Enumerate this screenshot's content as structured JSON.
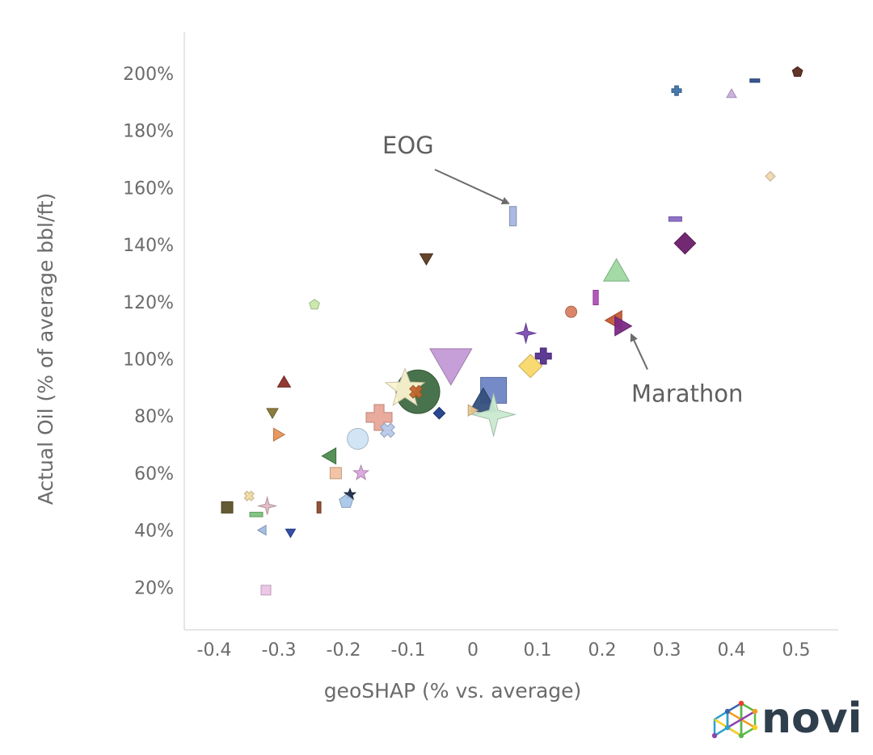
{
  "chart_data": {
    "type": "scatter",
    "title": "",
    "xlabel": "geoSHAP (% vs. average)",
    "ylabel": "Actual Oil (% of average bbl/ft)",
    "xlim": [
      -0.45,
      0.57
    ],
    "ylim": [
      0.0,
      2.15
    ],
    "x_ticks": [
      -0.4,
      -0.3,
      -0.2,
      -0.1,
      0,
      0.1,
      0.2,
      0.3,
      0.4,
      0.5
    ],
    "x_tick_labels": [
      "-0.4",
      "-0.3",
      "-0.2",
      "-0.1",
      "0",
      "0.1",
      "0.2",
      "0.3",
      "0.4",
      "0.5"
    ],
    "y_ticks": [
      0.2,
      0.4,
      0.6,
      0.8,
      1.0,
      1.2,
      1.4,
      1.6,
      1.8,
      2.0
    ],
    "y_tick_labels": [
      "20%",
      "40%",
      "60%",
      "80%",
      "100%",
      "120%",
      "140%",
      "160%",
      "180%",
      "200%"
    ],
    "grid": false,
    "legend": "none",
    "points": [
      {
        "x": 0.502,
        "y": 2.005,
        "shape": "pentagon",
        "color": "#5a2a1e",
        "size": 6
      },
      {
        "x": 0.315,
        "y": 1.94,
        "shape": "plus",
        "color": "#3f73a8",
        "size": 6
      },
      {
        "x": 0.4,
        "y": 1.93,
        "shape": "triangle-up",
        "color": "#c9b0dc",
        "size": 6
      },
      {
        "x": 0.436,
        "y": 1.975,
        "shape": "dash",
        "color": "#2e4e8a",
        "size": 6
      },
      {
        "x": 0.46,
        "y": 1.64,
        "shape": "diamond",
        "color": "#f0d8b0",
        "size": 5
      },
      {
        "x": 0.062,
        "y": 1.5,
        "shape": "bar-v",
        "color": "#a5b4e0",
        "size": 12
      },
      {
        "x": 0.313,
        "y": 1.49,
        "shape": "dash",
        "color": "#8a6ac8",
        "size": 8
      },
      {
        "x": 0.328,
        "y": 1.405,
        "shape": "diamond",
        "color": "#6a1d6a",
        "size": 11
      },
      {
        "x": -0.072,
        "y": 1.35,
        "shape": "triangle-down",
        "color": "#5c3a22",
        "size": 8
      },
      {
        "x": 0.222,
        "y": 1.31,
        "shape": "triangle-up",
        "color": "#9ed8a0",
        "size": 16
      },
      {
        "x": -0.245,
        "y": 1.19,
        "shape": "pentagon",
        "color": "#c8e8a8",
        "size": 6
      },
      {
        "x": 0.19,
        "y": 1.215,
        "shape": "bar-v",
        "color": "#b050b8",
        "size": 9
      },
      {
        "x": 0.152,
        "y": 1.165,
        "shape": "circle",
        "color": "#d98063",
        "size": 7
      },
      {
        "x": 0.218,
        "y": 1.135,
        "shape": "triangle-left",
        "color": "#c45a35",
        "size": 12
      },
      {
        "x": 0.232,
        "y": 1.115,
        "shape": "triangle-right",
        "color": "#7b2a86",
        "size": 12
      },
      {
        "x": 0.082,
        "y": 1.09,
        "shape": "star4",
        "color": "#7a4cb4",
        "size": 10
      },
      {
        "x": 0.109,
        "y": 1.01,
        "shape": "plus",
        "color": "#54308e",
        "size": 10
      },
      {
        "x": -0.034,
        "y": 0.975,
        "shape": "triangle-down",
        "color": "#c49ad6",
        "size": 26
      },
      {
        "x": 0.089,
        "y": 0.975,
        "shape": "diamond",
        "color": "#f9d86a",
        "size": 12
      },
      {
        "x": -0.292,
        "y": 0.92,
        "shape": "triangle-up",
        "color": "#8b2e28",
        "size": 8
      },
      {
        "x": -0.085,
        "y": 0.885,
        "shape": "circle",
        "color": "#3f6b42",
        "size": 27
      },
      {
        "x": -0.105,
        "y": 0.895,
        "shape": "star5",
        "color": "#fbf3cf",
        "size": 21
      },
      {
        "x": -0.088,
        "y": 0.885,
        "shape": "cross",
        "color": "#c4662e",
        "size": 8
      },
      {
        "x": 0.032,
        "y": 0.89,
        "shape": "square",
        "color": "#6d85c4",
        "size": 16
      },
      {
        "x": 0.016,
        "y": 0.855,
        "shape": "triangle-up",
        "color": "#35507e",
        "size": 17
      },
      {
        "x": 0.032,
        "y": 0.805,
        "shape": "star4",
        "color": "#c9ead0",
        "size": 22
      },
      {
        "x": 0.0,
        "y": 0.82,
        "shape": "triangle-right",
        "color": "#e9c890",
        "size": 7
      },
      {
        "x": -0.052,
        "y": 0.81,
        "shape": "diamond",
        "color": "#1f3d8a",
        "size": 6
      },
      {
        "x": -0.31,
        "y": 0.81,
        "shape": "triangle-down",
        "color": "#857535",
        "size": 7
      },
      {
        "x": -0.145,
        "y": 0.795,
        "shape": "plus",
        "color": "#e8a698",
        "size": 16
      },
      {
        "x": -0.132,
        "y": 0.75,
        "shape": "cross",
        "color": "#b7c9ea",
        "size": 9
      },
      {
        "x": -0.3,
        "y": 0.735,
        "shape": "triangle-right",
        "color": "#e6945a",
        "size": 8
      },
      {
        "x": -0.178,
        "y": 0.72,
        "shape": "circle",
        "color": "#cfe4f4",
        "size": 13
      },
      {
        "x": -0.222,
        "y": 0.66,
        "shape": "triangle-left",
        "color": "#4f8b4f",
        "size": 10
      },
      {
        "x": -0.212,
        "y": 0.6,
        "shape": "square",
        "color": "#f2c0a0",
        "size": 7
      },
      {
        "x": -0.173,
        "y": 0.6,
        "shape": "star5",
        "color": "#d9a7dc",
        "size": 8
      },
      {
        "x": -0.19,
        "y": 0.525,
        "shape": "star5",
        "color": "#1e2b4a",
        "size": 6
      },
      {
        "x": -0.196,
        "y": 0.5,
        "shape": "pentagon",
        "color": "#a9c7ea",
        "size": 8
      },
      {
        "x": -0.346,
        "y": 0.52,
        "shape": "cross",
        "color": "#f1dba4",
        "size": 6
      },
      {
        "x": -0.318,
        "y": 0.485,
        "shape": "star4",
        "color": "#e0b9c3",
        "size": 9
      },
      {
        "x": -0.38,
        "y": 0.48,
        "shape": "square",
        "color": "#5c5229",
        "size": 7
      },
      {
        "x": -0.238,
        "y": 0.48,
        "shape": "bar-v",
        "color": "#8e4a2b",
        "size": 7
      },
      {
        "x": -0.335,
        "y": 0.455,
        "shape": "dash",
        "color": "#7ac27c",
        "size": 8
      },
      {
        "x": -0.326,
        "y": 0.4,
        "shape": "triangle-left",
        "color": "#9fbce0",
        "size": 6
      },
      {
        "x": -0.282,
        "y": 0.39,
        "shape": "triangle-down",
        "color": "#2947a0",
        "size": 6
      },
      {
        "x": -0.32,
        "y": 0.19,
        "shape": "square",
        "color": "#ecc4e6",
        "size": 6
      }
    ],
    "annotations": [
      {
        "text": "EOG",
        "x": -0.14,
        "y": 1.72,
        "arrow_to": [
          0.055,
          1.545
        ]
      },
      {
        "text": "Marathon",
        "x": 0.245,
        "y": 0.85,
        "arrow_to": [
          0.245,
          1.085
        ]
      }
    ]
  },
  "logo": {
    "text": "novi",
    "colors": [
      "#e8412c",
      "#f39c1e",
      "#f7d21e",
      "#5ab946",
      "#2ea2c9",
      "#3a67b0",
      "#8e44ad"
    ]
  }
}
